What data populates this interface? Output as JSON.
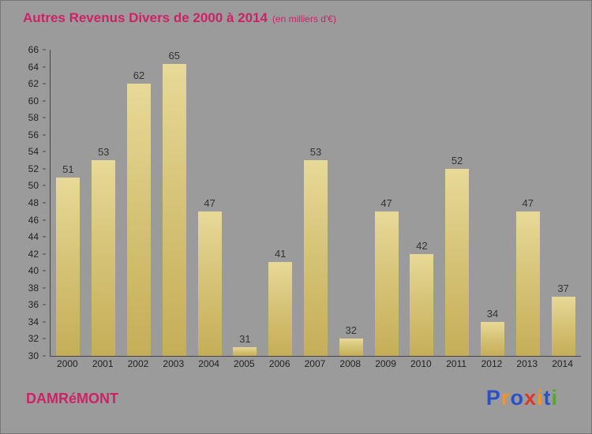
{
  "title": {
    "text": "Autres Revenus Divers de 2000 à 2014",
    "subtitle": "(en milliers d'€)"
  },
  "footer": {
    "commune": "DAMRéMONT",
    "logo": {
      "name": "Proxiti",
      "letters": [
        {
          "ch": "P",
          "color": "#2b50c8"
        },
        {
          "ch": "r",
          "color": "#f7941d"
        },
        {
          "ch": "o",
          "color": "#2b50c8"
        },
        {
          "ch": "x",
          "color": "#d93a2b"
        },
        {
          "ch": "i",
          "color": "#f7941d"
        },
        {
          "ch": "t",
          "color": "#2b50c8"
        },
        {
          "ch": "i",
          "color": "#4fae1e"
        }
      ]
    }
  },
  "colors": {
    "background": "#9b9b9b",
    "title": "#cc2266",
    "bar_top": "#e8d998",
    "bar_bottom": "#c6ae58",
    "axis": "#444444"
  },
  "chart_data": {
    "type": "bar",
    "title": "Autres Revenus Divers de 2000 à 2014",
    "subtitle": "(en milliers d'€)",
    "xlabel": "",
    "ylabel": "",
    "categories": [
      "2000",
      "2001",
      "2002",
      "2003",
      "2004",
      "2005",
      "2006",
      "2007",
      "2008",
      "2009",
      "2010",
      "2011",
      "2012",
      "2013",
      "2014"
    ],
    "values": [
      51,
      53,
      62,
      65,
      47,
      31,
      41,
      53,
      32,
      47,
      42,
      52,
      34,
      47,
      37
    ],
    "ylim": [
      30,
      66
    ],
    "ytick_step": 2,
    "yticks": [
      30,
      32,
      34,
      36,
      38,
      40,
      42,
      44,
      46,
      48,
      50,
      52,
      54,
      56,
      58,
      60,
      62,
      64,
      66
    ],
    "grid": false,
    "legend": false,
    "bar_color": "#d6c478"
  }
}
